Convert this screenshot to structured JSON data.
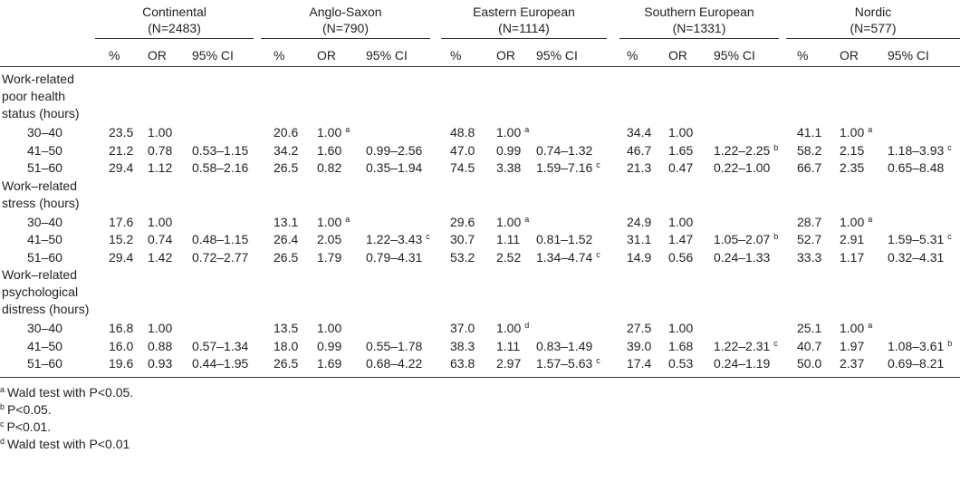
{
  "table": {
    "groups": [
      {
        "name": "Continental",
        "n": "(N=2483)"
      },
      {
        "name": "Anglo-Saxon",
        "n": "(N=790)"
      },
      {
        "name": "Eastern European",
        "n": "(N=1114)"
      },
      {
        "name": "Southern European",
        "n": "(N=1331)"
      },
      {
        "name": "Nordic",
        "n": "(N=577)"
      }
    ],
    "columns": [
      "%",
      "OR",
      "95% CI"
    ],
    "sections": [
      {
        "label": "Work-related poor health status (hours)",
        "rows": [
          {
            "label": "30–40",
            "cells": [
              "23.5",
              "1.00",
              null,
              "20.6",
              {
                "text": "1.00",
                "note": "a"
              },
              null,
              "48.8",
              {
                "text": "1.00",
                "note": "a"
              },
              null,
              "34.4",
              "1.00",
              null,
              "41.1",
              {
                "text": "1.00",
                "note": "a"
              },
              null
            ]
          },
          {
            "label": "41–50",
            "cells": [
              "21.2",
              "0.78",
              "0.53–1.15",
              "34.2",
              "1.60",
              "0.99–2.56",
              "47.0",
              "0.99",
              "0.74–1.32",
              "46.7",
              "1.65",
              {
                "text": "1.22–2.25",
                "note": "b"
              },
              "58.2",
              "2.15",
              {
                "text": "1.18–3.93",
                "note": "c"
              }
            ]
          },
          {
            "label": "51–60",
            "cells": [
              "29.4",
              "1.12",
              "0.58–2.16",
              "26.5",
              "0.82",
              "0.35–1.94",
              "74.5",
              "3.38",
              {
                "text": "1.59–7.16",
                "note": "c"
              },
              "21.3",
              "0.47",
              "0.22–1.00",
              "66.7",
              "2.35",
              "0.65–8.48"
            ]
          }
        ]
      },
      {
        "label": "Work–related stress (hours)",
        "rows": [
          {
            "label": "30–40",
            "cells": [
              "17.6",
              "1.00",
              null,
              "13.1",
              {
                "text": "1.00",
                "note": "a"
              },
              null,
              "29.6",
              {
                "text": "1.00",
                "note": "a"
              },
              null,
              "24.9",
              "1.00",
              null,
              "28.7",
              {
                "text": "1.00",
                "note": "a"
              },
              null
            ]
          },
          {
            "label": "41–50",
            "cells": [
              "15.2",
              "0.74",
              "0.48–1.15",
              "26.4",
              "2.05",
              {
                "text": "1.22–3.43",
                "note": "c"
              },
              "30.7",
              "1.11",
              "0.81–1.52",
              "31.1",
              "1.47",
              {
                "text": "1.05–2.07",
                "note": "b"
              },
              "52.7",
              "2.91",
              {
                "text": "1.59–5.31",
                "note": "c"
              }
            ]
          },
          {
            "label": "51–60",
            "cells": [
              "29.4",
              "1.42",
              "0.72–2.77",
              "26.5",
              "1.79",
              "0.79–4.31",
              "53.2",
              "2.52",
              {
                "text": "1.34–4.74",
                "note": "c"
              },
              "14.9",
              "0.56",
              "0.24–1.33",
              "33.3",
              "1.17",
              "0.32–4.31"
            ]
          }
        ]
      },
      {
        "label": "Work–related psychological distress (hours)",
        "rows": [
          {
            "label": "30–40",
            "cells": [
              "16.8",
              "1.00",
              null,
              "13.5",
              "1.00",
              null,
              "37.0",
              {
                "text": "1.00",
                "note": "d"
              },
              null,
              "27.5",
              "1.00",
              null,
              "25.1",
              {
                "text": "1.00",
                "note": "a"
              },
              null
            ]
          },
          {
            "label": "41–50",
            "cells": [
              "16.0",
              "0.88",
              "0.57–1.34",
              "18.0",
              "0.99",
              "0.55–1.78",
              "38.3",
              "1.11",
              "0.83–1.49",
              "39.0",
              "1.68",
              {
                "text": "1.22–2.31",
                "note": "c"
              },
              "40.7",
              "1.97",
              {
                "text": "1.08–3.61",
                "note": "b"
              }
            ]
          },
          {
            "label": "51–60",
            "cells": [
              "19.6",
              "0.93",
              "0.44–1.95",
              "26.5",
              "1.69",
              "0.68–4.22",
              "63.8",
              "2.97",
              {
                "text": "1.57–5.63",
                "note": "c"
              },
              "17.4",
              "0.53",
              "0.24–1.19",
              "50.0",
              "2.37",
              "0.69–8.21"
            ]
          }
        ]
      }
    ],
    "footnotes": [
      {
        "mark": "a",
        "text": "Wald test with P<0.05."
      },
      {
        "mark": "b",
        "text": "P<0.05."
      },
      {
        "mark": "c",
        "text": "P<0.01."
      },
      {
        "mark": "d",
        "text": "Wald test with P<0.01"
      }
    ]
  }
}
